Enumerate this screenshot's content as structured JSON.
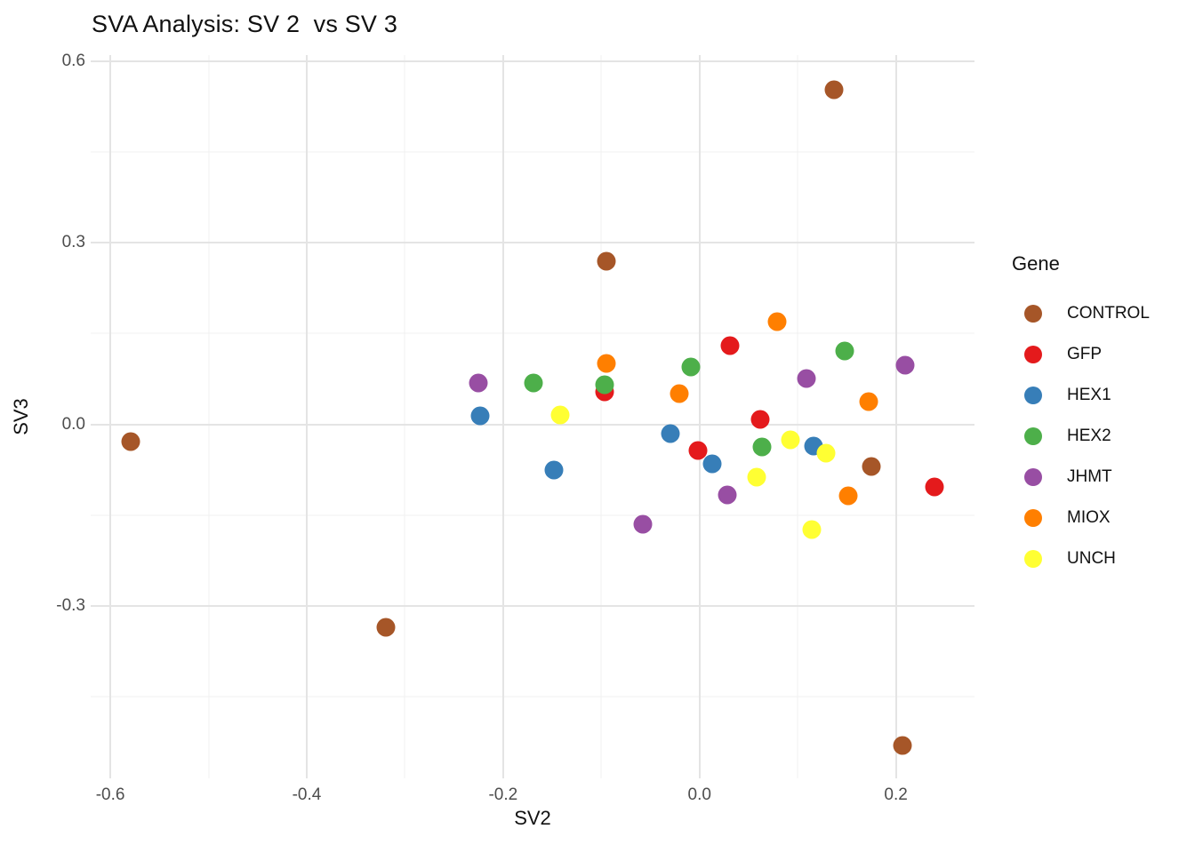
{
  "title": "SVA Analysis: SV 2  vs SV 3",
  "chart_data": {
    "type": "scatter",
    "title": "SVA Analysis: SV 2  vs SV 3",
    "xlabel": "SV2",
    "ylabel": "SV3",
    "xlim": [
      -0.62,
      0.28
    ],
    "ylim": [
      -0.585,
      0.61
    ],
    "grid": true,
    "x_ticks": [
      {
        "v": -0.6,
        "label": "-0.6"
      },
      {
        "v": -0.4,
        "label": "-0.4"
      },
      {
        "v": -0.2,
        "label": "-0.2"
      },
      {
        "v": 0.0,
        "label": "0.0"
      },
      {
        "v": 0.2,
        "label": "0.2"
      }
    ],
    "y_ticks": [
      {
        "v": 0.6,
        "label": "0.6"
      },
      {
        "v": 0.3,
        "label": "0.3"
      },
      {
        "v": 0.0,
        "label": "0.0"
      },
      {
        "v": -0.3,
        "label": "-0.3"
      }
    ],
    "x_minor": [
      -0.5,
      -0.3,
      -0.1,
      0.1
    ],
    "y_minor": [
      0.45,
      0.15,
      -0.15,
      -0.45
    ],
    "legend_position": "right",
    "legend_title": "Gene",
    "series": [
      {
        "name": "CONTROL",
        "color": "#A65628",
        "points": [
          [
            -0.579,
            -0.029
          ],
          [
            -0.319,
            -0.335
          ],
          [
            -0.095,
            0.27
          ],
          [
            0.137,
            0.553
          ],
          [
            0.175,
            -0.07
          ],
          [
            0.207,
            -0.53
          ]
        ]
      },
      {
        "name": "GFP",
        "color": "#E41A1C",
        "points": [
          [
            -0.097,
            0.054
          ],
          [
            -0.002,
            -0.044
          ],
          [
            0.031,
            0.13
          ],
          [
            0.062,
            0.008
          ],
          [
            0.239,
            -0.104
          ]
        ]
      },
      {
        "name": "HEX1",
        "color": "#377EB8",
        "points": [
          [
            -0.223,
            0.014
          ],
          [
            -0.148,
            -0.075
          ],
          [
            -0.03,
            -0.015
          ],
          [
            0.013,
            -0.065
          ],
          [
            0.116,
            -0.036
          ]
        ]
      },
      {
        "name": "HEX2",
        "color": "#4DAF4A",
        "points": [
          [
            -0.169,
            0.069
          ],
          [
            -0.097,
            0.065
          ],
          [
            -0.009,
            0.094
          ],
          [
            0.064,
            -0.038
          ],
          [
            0.148,
            0.121
          ]
        ]
      },
      {
        "name": "JHMT",
        "color": "#984EA3",
        "points": [
          [
            -0.225,
            0.069
          ],
          [
            -0.058,
            -0.165
          ],
          [
            0.028,
            -0.117
          ],
          [
            0.109,
            0.075
          ],
          [
            0.209,
            0.097
          ]
        ]
      },
      {
        "name": "MIOX",
        "color": "#FF7F00",
        "points": [
          [
            -0.095,
            0.101
          ],
          [
            -0.021,
            0.05
          ],
          [
            0.079,
            0.169
          ],
          [
            0.151,
            -0.118
          ],
          [
            0.172,
            0.038
          ]
        ]
      },
      {
        "name": "UNCH",
        "color": "#FFFF33",
        "points": [
          [
            -0.142,
            0.015
          ],
          [
            0.058,
            -0.087
          ],
          [
            0.093,
            -0.025
          ],
          [
            0.114,
            -0.174
          ],
          [
            0.129,
            -0.047
          ]
        ]
      }
    ]
  }
}
